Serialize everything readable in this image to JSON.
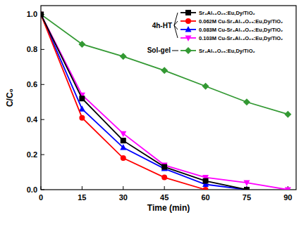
{
  "chart_data": {
    "type": "line",
    "x_label": "Time (min)",
    "y_label": "C/C₀",
    "x": [
      0,
      15,
      30,
      45,
      60,
      75,
      90
    ],
    "xlim": [
      0,
      93
    ],
    "xticks": [
      0,
      15,
      30,
      45,
      60,
      75,
      90
    ],
    "ylim": [
      0,
      1.05
    ],
    "yticks": [
      {
        "value": 0,
        "label": "0.0"
      },
      0.2,
      0.4,
      0.6,
      0.8,
      {
        "value": 1,
        "label": "1.0"
      }
    ],
    "grid": false,
    "legend": "upper right",
    "annotations": [
      "4h-HT",
      "Sol-gel"
    ],
    "series": [
      {
        "name": "Sr₄Al₁₄O₂₅:Eu,Dy/TiO₂",
        "color": "#000000",
        "marker": "square",
        "values": [
          1,
          0.52,
          0.28,
          0.13,
          0.05,
          0,
          null
        ]
      },
      {
        "name": "0.062M Cu-Sr₄Al₁₄O₂₅:Eu,Dy/TiO₂",
        "color": "#ff0000",
        "marker": "circle",
        "values": [
          1,
          0.41,
          0.18,
          0.07,
          0,
          null,
          null
        ]
      },
      {
        "name": "0.083M Cu-Sr₄Al₁₄O₂₅:Eu,Dy/TiO₂",
        "color": "#0000ff",
        "marker": "triangle-up",
        "values": [
          1,
          0.46,
          0.24,
          0.12,
          0.03,
          0,
          null
        ]
      },
      {
        "name": "0.103M Cu-Sr₄Al₁₄O₂₅:Eu,Dy/TiO₂",
        "color": "#ff00ff",
        "marker": "triangle-down",
        "values": [
          1,
          0.54,
          0.32,
          0.14,
          0.07,
          0.04,
          0
        ]
      },
      {
        "name": "Sr₄Al₁₄O₂₅:Eu,Dy/TiO₂",
        "color": "#339933",
        "marker": "diamond",
        "values": [
          1,
          0.83,
          0.76,
          0.68,
          0.59,
          0.5,
          0.43
        ]
      }
    ]
  }
}
